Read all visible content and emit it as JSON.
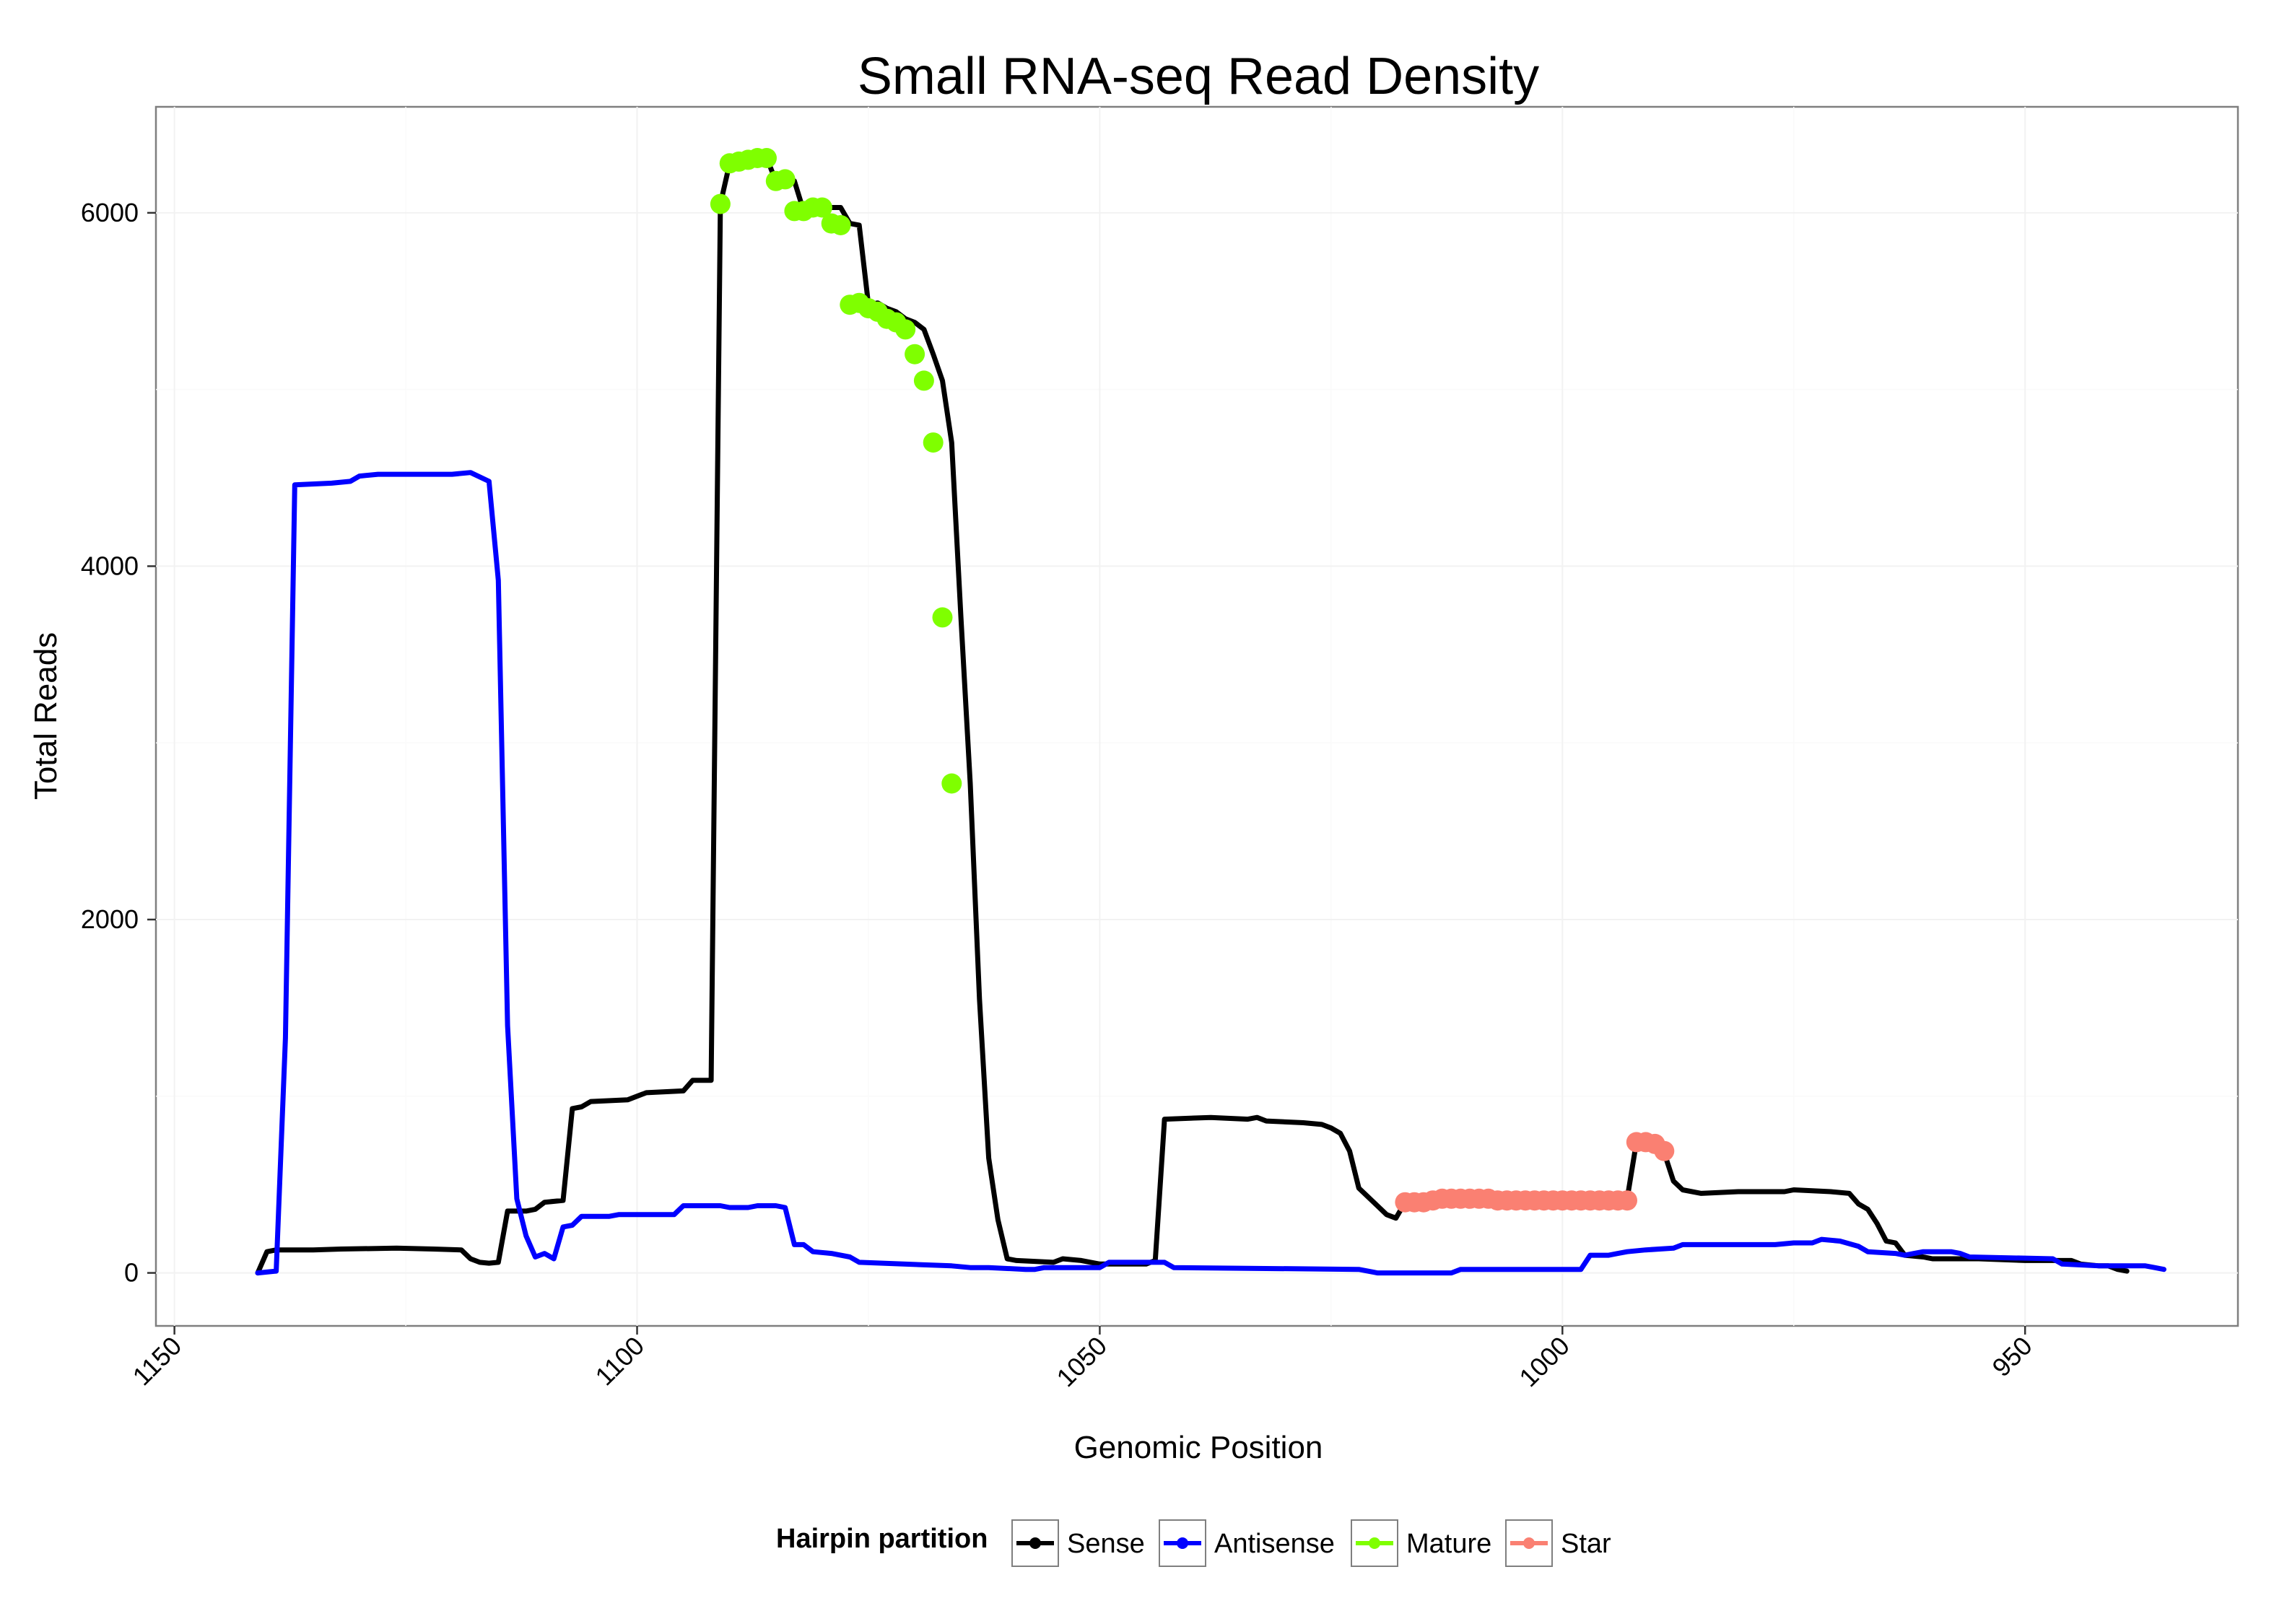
{
  "chart_data": {
    "type": "line",
    "title": "Small RNA-seq Read Density",
    "xlabel": "Genomic Position",
    "ylabel": "Total Reads",
    "xlim": [
      1152,
      927
    ],
    "x_reversed": true,
    "ylim": [
      -300,
      6600
    ],
    "x_ticks": [
      1150,
      1100,
      1050,
      1000,
      950
    ],
    "y_ticks": [
      0,
      2000,
      4000,
      6000
    ],
    "grid": true,
    "legend": {
      "title": "Hairpin partition",
      "placement": "bottom",
      "entries": [
        "Sense",
        "Antisense",
        "Mature",
        "Star"
      ]
    },
    "colors": {
      "sense": "#000000",
      "antisense": "#0000ff",
      "mature": "#7fff00",
      "star": "#fa8072"
    },
    "series": [
      {
        "name": "Sense",
        "kind": "line",
        "color": "#000000",
        "points": [
          [
            1141,
            0
          ],
          [
            1140,
            120
          ],
          [
            1139,
            130
          ],
          [
            1135,
            130
          ],
          [
            1132,
            135
          ],
          [
            1126,
            140
          ],
          [
            1122,
            135
          ],
          [
            1119,
            130
          ],
          [
            1118,
            80
          ],
          [
            1117,
            60
          ],
          [
            1116,
            55
          ],
          [
            1115,
            60
          ],
          [
            1114,
            350
          ],
          [
            1112,
            350
          ],
          [
            1111,
            360
          ],
          [
            1110,
            400
          ],
          [
            1108,
            410
          ],
          [
            1107,
            930
          ],
          [
            1106,
            940
          ],
          [
            1105,
            970
          ],
          [
            1101,
            980
          ],
          [
            1099,
            1020
          ],
          [
            1095,
            1030
          ],
          [
            1094,
            1090
          ],
          [
            1092,
            1090
          ],
          [
            1091,
            6050
          ],
          [
            1090,
            6280
          ],
          [
            1087,
            6310
          ],
          [
            1086,
            6310
          ],
          [
            1085,
            6180
          ],
          [
            1083,
            6180
          ],
          [
            1082,
            6010
          ],
          [
            1080,
            6030
          ],
          [
            1078,
            6030
          ],
          [
            1077,
            5940
          ],
          [
            1076,
            5930
          ],
          [
            1075,
            5480
          ],
          [
            1074,
            5490
          ],
          [
            1073,
            5460
          ],
          [
            1072,
            5440
          ],
          [
            1071,
            5400
          ],
          [
            1070,
            5380
          ],
          [
            1069,
            5340
          ],
          [
            1068,
            5200
          ],
          [
            1067,
            5050
          ],
          [
            1066,
            4700
          ],
          [
            1065,
            3710
          ],
          [
            1064,
            2770
          ],
          [
            1063,
            1550
          ],
          [
            1062,
            650
          ],
          [
            1061,
            300
          ],
          [
            1060,
            80
          ],
          [
            1059,
            70
          ],
          [
            1055,
            60
          ],
          [
            1054,
            80
          ],
          [
            1052,
            70
          ],
          [
            1050,
            50
          ],
          [
            1045,
            50
          ],
          [
            1044,
            70
          ],
          [
            1043,
            870
          ],
          [
            1038,
            880
          ],
          [
            1034,
            870
          ],
          [
            1033,
            880
          ],
          [
            1032,
            860
          ],
          [
            1028,
            850
          ],
          [
            1026,
            840
          ],
          [
            1025,
            820
          ],
          [
            1024,
            790
          ],
          [
            1023,
            690
          ],
          [
            1022,
            480
          ],
          [
            1020,
            380
          ],
          [
            1019,
            330
          ],
          [
            1018,
            310
          ],
          [
            1017,
            400
          ],
          [
            1013,
            420
          ],
          [
            993,
            420
          ],
          [
            992,
            740
          ],
          [
            990,
            730
          ],
          [
            989,
            680
          ],
          [
            988,
            520
          ],
          [
            987,
            470
          ],
          [
            985,
            450
          ],
          [
            981,
            460
          ],
          [
            976,
            460
          ],
          [
            975,
            470
          ],
          [
            971,
            460
          ],
          [
            969,
            450
          ],
          [
            968,
            390
          ],
          [
            967,
            360
          ],
          [
            966,
            280
          ],
          [
            965,
            180
          ],
          [
            964,
            170
          ],
          [
            963,
            100
          ],
          [
            961,
            90
          ],
          [
            960,
            80
          ],
          [
            955,
            80
          ],
          [
            950,
            70
          ],
          [
            945,
            70
          ],
          [
            944,
            50
          ],
          [
            942,
            40
          ],
          [
            941,
            40
          ],
          [
            940,
            20
          ],
          [
            939,
            10
          ]
        ]
      },
      {
        "name": "Antisense",
        "kind": "line",
        "color": "#0000ff",
        "points": [
          [
            1141,
            0
          ],
          [
            1139,
            10
          ],
          [
            1138,
            1330
          ],
          [
            1137,
            4460
          ],
          [
            1133,
            4470
          ],
          [
            1131,
            4480
          ],
          [
            1130,
            4510
          ],
          [
            1128,
            4520
          ],
          [
            1120,
            4520
          ],
          [
            1118,
            4530
          ],
          [
            1116,
            4480
          ],
          [
            1115,
            3920
          ],
          [
            1114,
            1400
          ],
          [
            1113,
            420
          ],
          [
            1112,
            210
          ],
          [
            1111,
            90
          ],
          [
            1110,
            110
          ],
          [
            1109,
            80
          ],
          [
            1108,
            260
          ],
          [
            1107,
            270
          ],
          [
            1106,
            320
          ],
          [
            1104,
            320
          ],
          [
            1103,
            320
          ],
          [
            1102,
            330
          ],
          [
            1097,
            330
          ],
          [
            1096,
            330
          ],
          [
            1095,
            380
          ],
          [
            1091,
            380
          ],
          [
            1090,
            370
          ],
          [
            1088,
            370
          ],
          [
            1087,
            380
          ],
          [
            1085,
            380
          ],
          [
            1084,
            370
          ],
          [
            1083,
            160
          ],
          [
            1082,
            160
          ],
          [
            1081,
            120
          ],
          [
            1079,
            110
          ],
          [
            1077,
            90
          ],
          [
            1076,
            60
          ],
          [
            1066,
            40
          ],
          [
            1064,
            30
          ],
          [
            1062,
            30
          ],
          [
            1058,
            20
          ],
          [
            1057,
            20
          ],
          [
            1056,
            30
          ],
          [
            1050,
            30
          ],
          [
            1049,
            60
          ],
          [
            1043,
            60
          ],
          [
            1042,
            30
          ],
          [
            1022,
            20
          ],
          [
            1020,
            0
          ],
          [
            1012,
            0
          ],
          [
            1011,
            20
          ],
          [
            998,
            20
          ],
          [
            997,
            100
          ],
          [
            995,
            100
          ],
          [
            994,
            110
          ],
          [
            993,
            120
          ],
          [
            991,
            130
          ],
          [
            988,
            140
          ],
          [
            987,
            160
          ],
          [
            977,
            160
          ],
          [
            975,
            170
          ],
          [
            973,
            170
          ],
          [
            972,
            190
          ],
          [
            970,
            180
          ],
          [
            968,
            150
          ],
          [
            967,
            120
          ],
          [
            964,
            110
          ],
          [
            963,
            100
          ],
          [
            962,
            110
          ],
          [
            961,
            120
          ],
          [
            958,
            120
          ],
          [
            957,
            110
          ],
          [
            956,
            90
          ],
          [
            947,
            80
          ],
          [
            946,
            50
          ],
          [
            942,
            40
          ],
          [
            937,
            40
          ],
          [
            936,
            30
          ],
          [
            935,
            20
          ]
        ]
      },
      {
        "name": "Mature",
        "kind": "points",
        "color": "#7fff00",
        "points": [
          [
            1091,
            6050
          ],
          [
            1090,
            6280
          ],
          [
            1089,
            6290
          ],
          [
            1088,
            6300
          ],
          [
            1087,
            6310
          ],
          [
            1086,
            6310
          ],
          [
            1085,
            6180
          ],
          [
            1084,
            6190
          ],
          [
            1083,
            6010
          ],
          [
            1082,
            6010
          ],
          [
            1081,
            6030
          ],
          [
            1080,
            6030
          ],
          [
            1079,
            5940
          ],
          [
            1078,
            5930
          ],
          [
            1077,
            5480
          ],
          [
            1076,
            5490
          ],
          [
            1075,
            5460
          ],
          [
            1074,
            5440
          ],
          [
            1073,
            5400
          ],
          [
            1072,
            5380
          ],
          [
            1071,
            5340
          ],
          [
            1070,
            5200
          ],
          [
            1069,
            5050
          ],
          [
            1068,
            4700
          ],
          [
            1067,
            3710
          ],
          [
            1066,
            2770
          ]
        ]
      },
      {
        "name": "Star",
        "kind": "points",
        "color": "#fa8072",
        "points": [
          [
            1017,
            400
          ],
          [
            1016,
            400
          ],
          [
            1015,
            400
          ],
          [
            1014,
            410
          ],
          [
            1013,
            420
          ],
          [
            1012,
            420
          ],
          [
            1011,
            420
          ],
          [
            1010,
            420
          ],
          [
            1009,
            420
          ],
          [
            1008,
            420
          ],
          [
            1007,
            410
          ],
          [
            1006,
            410
          ],
          [
            1005,
            410
          ],
          [
            1004,
            410
          ],
          [
            1003,
            410
          ],
          [
            1002,
            410
          ],
          [
            1001,
            410
          ],
          [
            1000,
            410
          ],
          [
            999,
            410
          ],
          [
            998,
            410
          ],
          [
            997,
            410
          ],
          [
            996,
            410
          ],
          [
            995,
            410
          ],
          [
            994,
            410
          ],
          [
            993,
            410
          ],
          [
            992,
            740
          ],
          [
            991,
            740
          ],
          [
            990,
            730
          ],
          [
            989,
            690
          ]
        ]
      }
    ]
  }
}
